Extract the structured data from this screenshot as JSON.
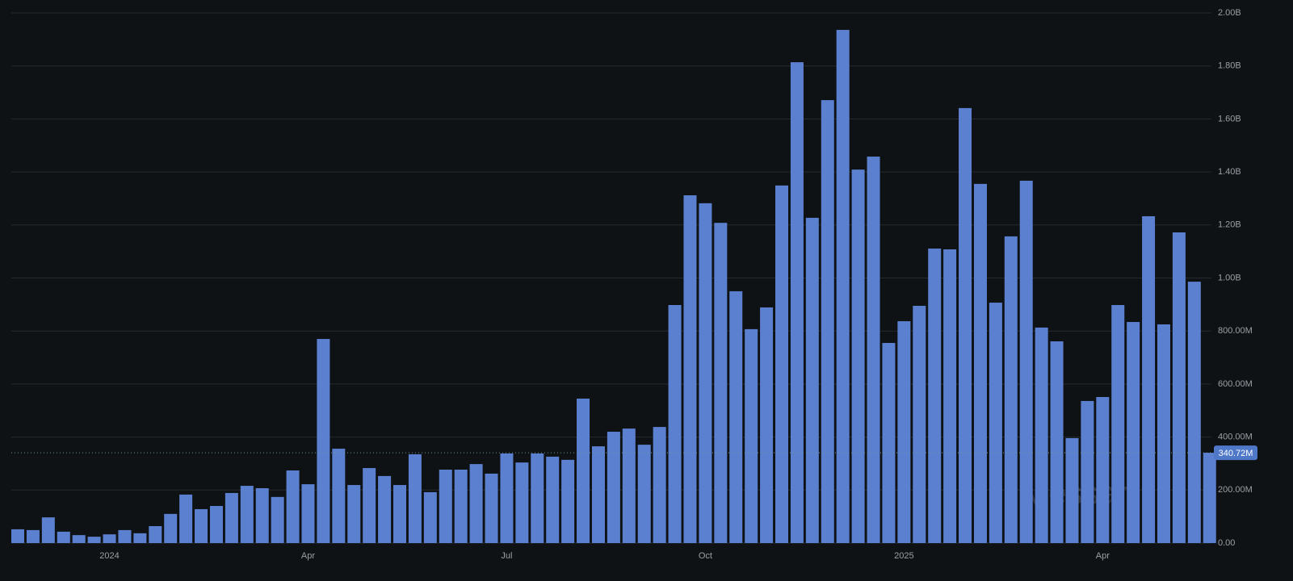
{
  "chart_data": {
    "type": "bar",
    "categories": [
      null,
      null,
      null,
      null,
      null,
      null,
      "2024",
      null,
      null,
      null,
      null,
      null,
      null,
      null,
      null,
      null,
      null,
      null,
      null,
      "Apr",
      null,
      null,
      null,
      null,
      null,
      null,
      null,
      null,
      null,
      null,
      null,
      null,
      "Jul",
      null,
      null,
      null,
      null,
      null,
      null,
      null,
      null,
      null,
      null,
      null,
      null,
      "Oct",
      null,
      null,
      null,
      null,
      null,
      null,
      null,
      null,
      null,
      null,
      null,
      null,
      "2025",
      null,
      null,
      null,
      null,
      null,
      null,
      null,
      null,
      null,
      null,
      null,
      null,
      "Apr",
      null,
      null,
      null,
      null,
      null,
      null,
      null
    ],
    "values": [
      52000000,
      49000000,
      97000000,
      43000000,
      30000000,
      24000000,
      33000000,
      49000000,
      37000000,
      64000000,
      110000000,
      183000000,
      128000000,
      140000000,
      189000000,
      216000000,
      207000000,
      174000000,
      274000000,
      222000000,
      770000000,
      356000000,
      219000000,
      283000000,
      253000000,
      219000000,
      335000000,
      192000000,
      277000000,
      277000000,
      298000000,
      262000000,
      338000000,
      304000000,
      338000000,
      326000000,
      314000000,
      545000000,
      365000000,
      420000000,
      432000000,
      371000000,
      438000000,
      898000000,
      1312000000,
      1282000000,
      1208000000,
      950000000,
      807000000,
      889000000,
      1349000000,
      1814000000,
      1227000000,
      1671000000,
      1936000000,
      1409000000,
      1458000000,
      755000000,
      837000000,
      895000000,
      1111000000,
      1108000000,
      1641000000,
      1355000000,
      907000000,
      1157000000,
      1367000000,
      813000000,
      761000000,
      396000000,
      536000000,
      551000000,
      898000000,
      834000000,
      1233000000,
      825000000,
      1172000000,
      986000000,
      340720000
    ],
    "color": "#5b80cf",
    "ylim": [
      0,
      2000000000
    ],
    "yticks": [
      {
        "value": 0,
        "label": "0.00"
      },
      {
        "value": 200000000,
        "label": "200.00M"
      },
      {
        "value": 400000000,
        "label": "400.00M"
      },
      {
        "value": 600000000,
        "label": "600.00M"
      },
      {
        "value": 800000000,
        "label": "800.00M"
      },
      {
        "value": 1000000000,
        "label": "1.00B"
      },
      {
        "value": 1200000000,
        "label": "1.20B"
      },
      {
        "value": 1400000000,
        "label": "1.40B"
      },
      {
        "value": 1600000000,
        "label": "1.60B"
      },
      {
        "value": 1800000000,
        "label": "1.80B"
      },
      {
        "value": 2000000000,
        "label": "2.00B"
      }
    ],
    "grid": true,
    "current": {
      "value": 340720000,
      "label": "340.72M"
    },
    "watermark": "Messari"
  }
}
